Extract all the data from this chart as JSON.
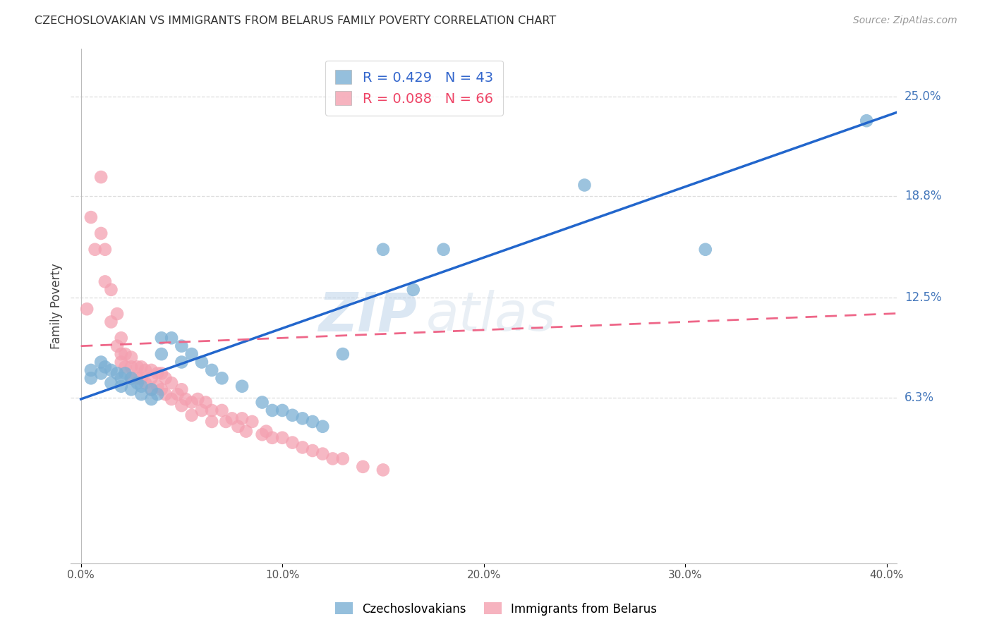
{
  "title": "CZECHOSLOVAKIAN VS IMMIGRANTS FROM BELARUS FAMILY POVERTY CORRELATION CHART",
  "source": "Source: ZipAtlas.com",
  "ylabel": "Family Poverty",
  "xlabel_ticks": [
    "0.0%",
    "",
    "10.0%",
    "",
    "20.0%",
    "",
    "30.0%",
    "",
    "40.0%"
  ],
  "xlabel_vals": [
    0.0,
    0.05,
    0.1,
    0.15,
    0.2,
    0.25,
    0.3,
    0.35,
    0.4
  ],
  "ytick_labels": [
    "25.0%",
    "18.8%",
    "12.5%",
    "6.3%"
  ],
  "ytick_vals": [
    0.25,
    0.188,
    0.125,
    0.063
  ],
  "xlim": [
    -0.005,
    0.405
  ],
  "ylim": [
    -0.04,
    0.28
  ],
  "blue_R": 0.429,
  "blue_N": 43,
  "pink_R": 0.088,
  "pink_N": 66,
  "legend_label_blue": "Czechoslovakians",
  "legend_label_pink": "Immigrants from Belarus",
  "blue_color": "#7BAFD4",
  "pink_color": "#F4A0B0",
  "blue_line_color": "#2266CC",
  "pink_line_color": "#EE6688",
  "watermark_zip": "ZIP",
  "watermark_atlas": "atlas",
  "blue_scatter_x": [
    0.005,
    0.005,
    0.01,
    0.01,
    0.012,
    0.015,
    0.015,
    0.018,
    0.02,
    0.02,
    0.022,
    0.025,
    0.025,
    0.028,
    0.03,
    0.03,
    0.035,
    0.035,
    0.038,
    0.04,
    0.04,
    0.045,
    0.05,
    0.05,
    0.055,
    0.06,
    0.065,
    0.07,
    0.08,
    0.09,
    0.095,
    0.1,
    0.105,
    0.11,
    0.115,
    0.12,
    0.13,
    0.15,
    0.165,
    0.18,
    0.25,
    0.31,
    0.39
  ],
  "blue_scatter_y": [
    0.08,
    0.075,
    0.085,
    0.078,
    0.082,
    0.08,
    0.072,
    0.078,
    0.075,
    0.07,
    0.078,
    0.075,
    0.068,
    0.072,
    0.07,
    0.065,
    0.068,
    0.062,
    0.065,
    0.1,
    0.09,
    0.1,
    0.095,
    0.085,
    0.09,
    0.085,
    0.08,
    0.075,
    0.07,
    0.06,
    0.055,
    0.055,
    0.052,
    0.05,
    0.048,
    0.045,
    0.09,
    0.155,
    0.13,
    0.155,
    0.195,
    0.155,
    0.235
  ],
  "pink_scatter_x": [
    0.003,
    0.005,
    0.007,
    0.01,
    0.01,
    0.012,
    0.012,
    0.015,
    0.015,
    0.018,
    0.018,
    0.02,
    0.02,
    0.02,
    0.022,
    0.022,
    0.025,
    0.025,
    0.025,
    0.028,
    0.028,
    0.03,
    0.03,
    0.032,
    0.032,
    0.035,
    0.035,
    0.035,
    0.038,
    0.038,
    0.04,
    0.04,
    0.042,
    0.042,
    0.045,
    0.045,
    0.048,
    0.05,
    0.05,
    0.052,
    0.055,
    0.055,
    0.058,
    0.06,
    0.062,
    0.065,
    0.065,
    0.07,
    0.072,
    0.075,
    0.078,
    0.08,
    0.082,
    0.085,
    0.09,
    0.092,
    0.095,
    0.1,
    0.105,
    0.11,
    0.115,
    0.12,
    0.125,
    0.13,
    0.14,
    0.15
  ],
  "pink_scatter_y": [
    0.118,
    0.175,
    0.155,
    0.2,
    0.165,
    0.155,
    0.135,
    0.13,
    0.11,
    0.115,
    0.095,
    0.1,
    0.09,
    0.085,
    0.09,
    0.082,
    0.088,
    0.082,
    0.075,
    0.082,
    0.075,
    0.082,
    0.075,
    0.08,
    0.072,
    0.08,
    0.075,
    0.068,
    0.078,
    0.07,
    0.078,
    0.068,
    0.075,
    0.065,
    0.072,
    0.062,
    0.065,
    0.068,
    0.058,
    0.062,
    0.06,
    0.052,
    0.062,
    0.055,
    0.06,
    0.055,
    0.048,
    0.055,
    0.048,
    0.05,
    0.045,
    0.05,
    0.042,
    0.048,
    0.04,
    0.042,
    0.038,
    0.038,
    0.035,
    0.032,
    0.03,
    0.028,
    0.025,
    0.025,
    0.02,
    0.018
  ]
}
